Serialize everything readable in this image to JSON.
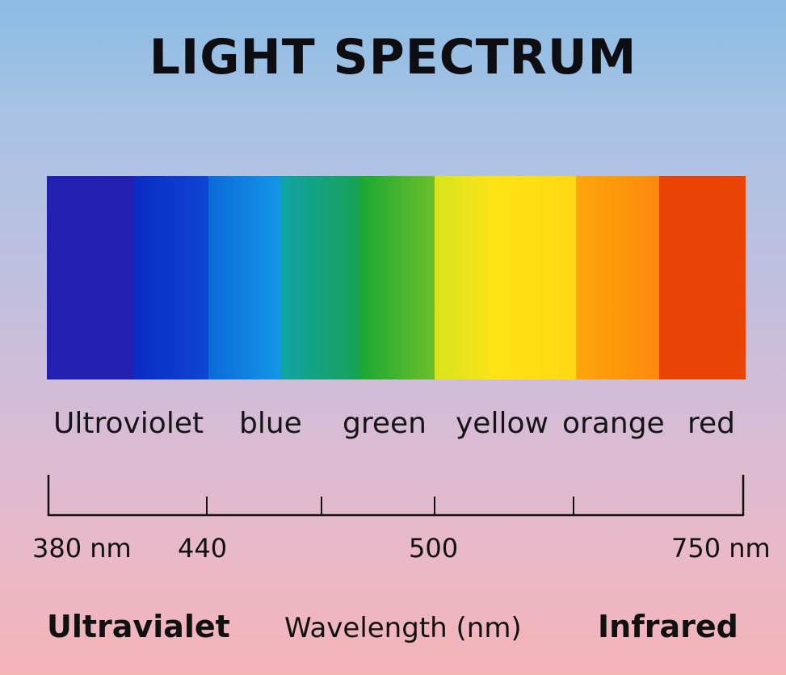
{
  "title": "LIGHT SPECTRUM",
  "bands": [
    {
      "label": "Ultroviolet",
      "color": "#2320b0"
    },
    {
      "label": "blue",
      "color": "#1287e6"
    },
    {
      "label": "green",
      "color": "#1aa637"
    },
    {
      "label": "yellow",
      "color": "#ffe015"
    },
    {
      "label": "orange",
      "color": "#ff9a0c"
    },
    {
      "label": "red",
      "color": "#ec4306"
    }
  ],
  "spectrum_colors": [
    "#2320b0",
    "#0c2fc4",
    "#1287e6",
    "#14a08d",
    "#1aa637",
    "#e4ea1a",
    "#ffe015",
    "#ff9a0c",
    "#ec4306"
  ],
  "axis": {
    "tick_labels": [
      "380 nm",
      "440",
      "500",
      "750 nm"
    ]
  },
  "bottom": {
    "left": "Ultravialet",
    "center": "Wavelength (nm)",
    "right": "Infrared"
  }
}
